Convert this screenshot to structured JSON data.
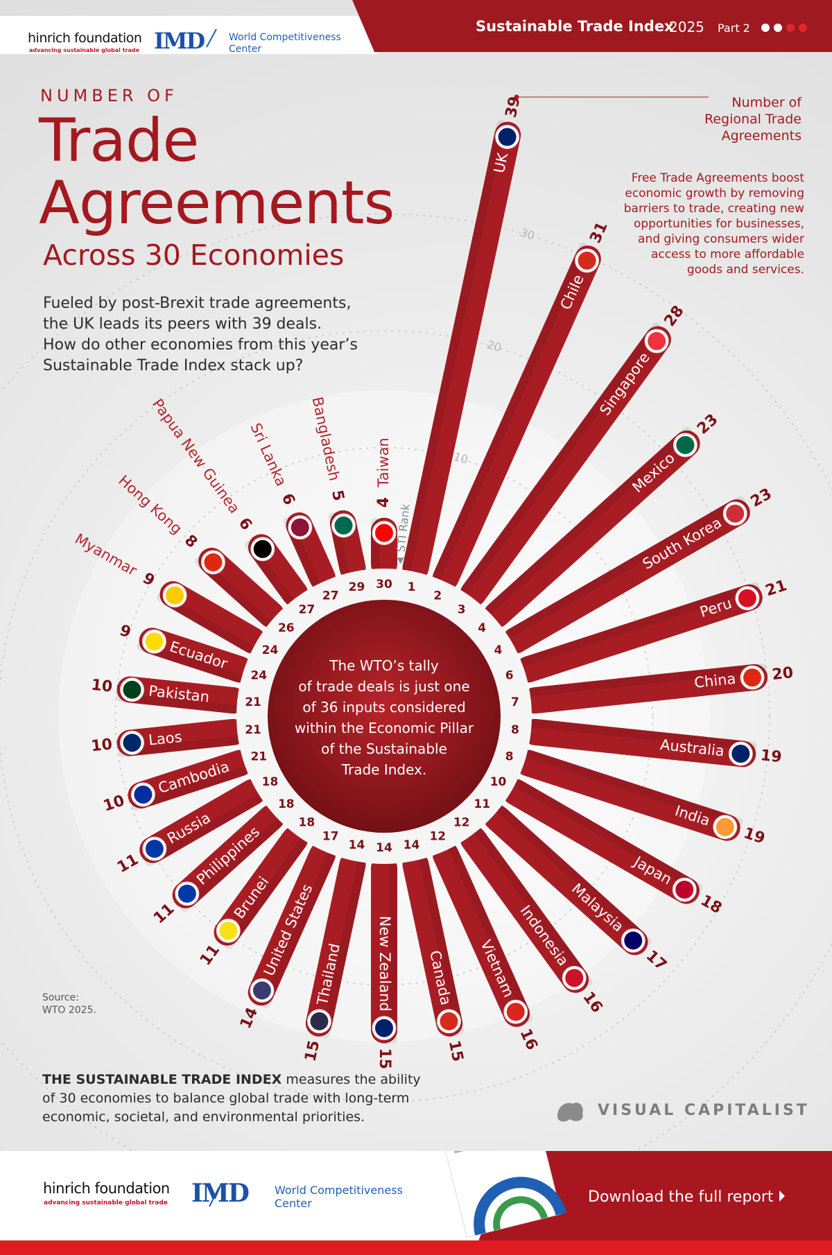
{
  "header": {
    "hinrich_name": "hinrich foundation",
    "hinrich_tagline": "advancing sustainable global trade",
    "imd_logo": "IMD",
    "imd_name_1": "World Competitiveness",
    "imd_name_2": "Center",
    "report_title": "Sustainable Trade Index",
    "report_year": "2025",
    "part": "Part 2"
  },
  "chart_data": {
    "type": "radial_bar",
    "kicker": "NUMBER OF",
    "title": [
      "Trade",
      "Agreements"
    ],
    "subtitle": "Across 30 Economies",
    "intro": [
      "Fueled by post-Brexit trade agreements,",
      "the UK leads its peers with 39 deals.",
      "How do other economies from this year’s",
      "Sustainable Trade Index stack up?"
    ],
    "value_axis_label": [
      "Number of",
      "Regional Trade",
      "Agreements"
    ],
    "annotation": [
      "Free Trade Agreements boost",
      "economic growth by removing",
      "barriers to trade, creating new",
      "opportunities for businesses,",
      "and giving consumers wider",
      "access to more affordable",
      "goods and services."
    ],
    "rank_axis_label": "STI Rank",
    "center_note": [
      "The WTO’s tally",
      "of trade deals is just one",
      "of 36 inputs considered",
      "within the Economic Pillar",
      "of the Sustainable",
      "Trade Index."
    ],
    "source_label": "Source:",
    "source": "WTO 2025.",
    "categories": [
      "UK",
      "Chile",
      "Singapore",
      "Mexico",
      "South Korea",
      "Peru",
      "China",
      "Australia",
      "India",
      "Japan",
      "Malaysia",
      "Indonesia",
      "Vietnam",
      "Canada",
      "New Zealand",
      "Thailand",
      "United States",
      "Brunei",
      "Philippines",
      "Russia",
      "Cambodia",
      "Laos",
      "Pakistan",
      "Ecuador",
      "Myanmar",
      "Hong Kong",
      "Papua New Guinea",
      "Sri Lanka",
      "Bangladesh",
      "Taiwan"
    ],
    "ranks": [
      1,
      2,
      3,
      4,
      4,
      6,
      7,
      8,
      8,
      10,
      11,
      12,
      12,
      14,
      14,
      14,
      17,
      18,
      18,
      18,
      21,
      21,
      21,
      24,
      24,
      26,
      27,
      27,
      29,
      30
    ],
    "values": [
      39,
      31,
      28,
      23,
      23,
      21,
      20,
      19,
      19,
      18,
      17,
      16,
      16,
      15,
      15,
      15,
      14,
      11,
      11,
      11,
      10,
      10,
      10,
      9,
      9,
      8,
      6,
      6,
      5,
      4
    ],
    "color": "#a81d24",
    "ylim": [
      0,
      40
    ],
    "yticks": [
      10,
      20,
      30
    ]
  },
  "footer": {
    "index_name": "THE SUSTAINABLE TRADE INDEX",
    "index_description": [
      "measures the ability",
      "of 30 economies to balance global trade with long-term",
      "economic, societal, and environmental priorities."
    ],
    "publisher": "VISUAL CAPITALIST",
    "hinrich_name": "hinrich foundation",
    "hinrich_tagline": "advancing sustainable global trade",
    "imd_logo": "IMD",
    "imd_name_1": "World Competitiveness",
    "imd_name_2": "Center",
    "download": "Download the full report"
  }
}
